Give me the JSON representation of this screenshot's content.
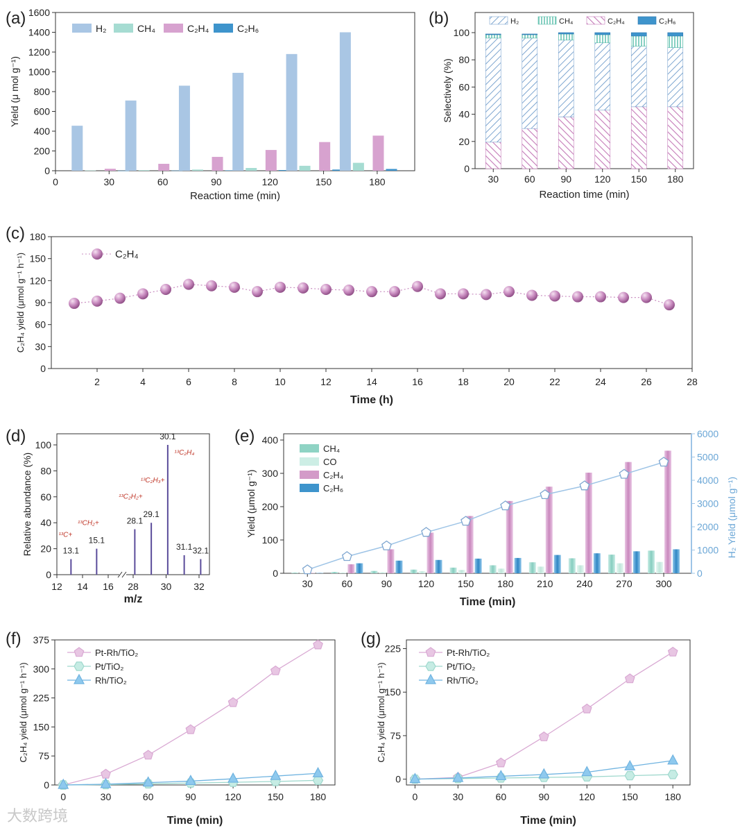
{
  "colors": {
    "h2": "#a9c6e4",
    "h2_dark": "#7ea6d0",
    "ch4": "#a6dcd2",
    "c2h4": "#d7a2cf",
    "c2h6": "#3e94cc",
    "co": "#cdeee5",
    "axis": "#222222",
    "label_red": "#c0392b",
    "spectrum": "#5a4b9a",
    "line_pt": "#a8e0d6",
    "line_rh": "#6fb3e0",
    "h2_line": "#9ec4e6",
    "c2h4_ball": "#c98cc0"
  },
  "chart_data": [
    {
      "id": "a",
      "panel_label": "(a)",
      "type": "bar",
      "xlabel": "Reaction time (min)",
      "ylabel_html": "Yield (μ mol g⁻¹)",
      "categories": [
        "30",
        "60",
        "90",
        "120",
        "150",
        "180"
      ],
      "x_ticks": [
        "0",
        "30",
        "60",
        "90",
        "120",
        "150",
        "180"
      ],
      "ylim": [
        0,
        1600
      ],
      "y_ticks": [
        "0",
        "200",
        "400",
        "600",
        "800",
        "1000",
        "1200",
        "1400",
        "1600"
      ],
      "legend": [
        "H₂",
        "CH₄",
        "C₂H₄",
        "C₂H₆"
      ],
      "series": [
        {
          "name": "H₂",
          "values": [
            455,
            710,
            860,
            990,
            1180,
            1400
          ]
        },
        {
          "name": "CH₄",
          "values": [
            3,
            6,
            12,
            28,
            50,
            80
          ]
        },
        {
          "name": "C₂H₄",
          "values": [
            20,
            70,
            140,
            210,
            290,
            355
          ]
        },
        {
          "name": "C₂H₆",
          "values": [
            1,
            2,
            4,
            7,
            12,
            18
          ]
        }
      ]
    },
    {
      "id": "b",
      "panel_label": "(b)",
      "type": "bar",
      "xlabel": "Reaction time (min)",
      "ylabel": "Selectively (%)",
      "categories": [
        "30",
        "60",
        "90",
        "120",
        "150",
        "180"
      ],
      "ylim": [
        0,
        100
      ],
      "y_ticks": [
        "0",
        "20",
        "40",
        "60",
        "80",
        "100"
      ],
      "legend": [
        "H₂",
        "CH₄",
        "C₂H₄",
        "C₂H₆"
      ],
      "series": [
        {
          "name": "C₂H₄",
          "values": [
            19.5,
            29.5,
            38,
            43,
            45.5,
            45.5
          ]
        },
        {
          "name": "H₂",
          "values": [
            76.5,
            66.5,
            56.5,
            49.5,
            44.5,
            43.5
          ]
        },
        {
          "name": "CH₄",
          "values": [
            2.5,
            2.5,
            4.5,
            6,
            7.5,
            8.5
          ]
        },
        {
          "name": "C₂H₆",
          "values": [
            0.5,
            0.5,
            1,
            1.5,
            2.5,
            2.5
          ]
        }
      ]
    },
    {
      "id": "c",
      "panel_label": "(c)",
      "type": "scatter",
      "xlabel": "Time (h)",
      "ylabel": "C₂H₄ yield (μmol g⁻¹ h⁻¹)",
      "xlim": [
        0,
        28
      ],
      "x_ticks": [
        "2",
        "4",
        "6",
        "8",
        "10",
        "12",
        "14",
        "16",
        "18",
        "20",
        "22",
        "24",
        "26",
        "28"
      ],
      "ylim": [
        0,
        180
      ],
      "y_ticks": [
        "0",
        "30",
        "60",
        "90",
        "120",
        "150",
        "180"
      ],
      "legend": [
        "C₂H₄"
      ],
      "x": [
        1,
        2,
        3,
        4,
        5,
        6,
        7,
        8,
        9,
        10,
        11,
        12,
        13,
        14,
        15,
        16,
        17,
        18,
        19,
        20,
        21,
        22,
        23,
        24,
        25,
        26,
        27
      ],
      "y": [
        89,
        92,
        96,
        102,
        108,
        115,
        113,
        111,
        105,
        111,
        110,
        108,
        107,
        105,
        105,
        112,
        102,
        102,
        101,
        105,
        100,
        99,
        98,
        98,
        97,
        97,
        87
      ]
    },
    {
      "id": "d",
      "panel_label": "(d)",
      "type": "bar",
      "xlabel": "m/z",
      "ylabel": "Relative abundance (%)",
      "x_ticks": [
        "12",
        "14",
        "16",
        "28",
        "30",
        "32"
      ],
      "ylim": [
        0,
        100
      ],
      "y_ticks": [
        "0",
        "20",
        "40",
        "60",
        "80",
        "100"
      ],
      "peaks": [
        {
          "mz": 13.1,
          "label": "13.1",
          "abundance": 12,
          "ion": "¹³C+"
        },
        {
          "mz": 15.1,
          "label": "15.1",
          "abundance": 20,
          "ion": "¹³CH₂+"
        },
        {
          "mz": 28.1,
          "label": "28.1",
          "abundance": 35,
          "ion": "¹³C₂H₂+"
        },
        {
          "mz": 29.1,
          "label": "29.1",
          "abundance": 40,
          "ion": "¹³C₂H₃+"
        },
        {
          "mz": 30.1,
          "label": "30.1",
          "abundance": 100,
          "ion": "¹³C₂H₄"
        },
        {
          "mz": 31.1,
          "label": "31.1",
          "abundance": 15,
          "ion": ""
        },
        {
          "mz": 32.1,
          "label": "32.1",
          "abundance": 12,
          "ion": ""
        }
      ]
    },
    {
      "id": "e",
      "panel_label": "(e)",
      "type": "bar",
      "xlabel": "Time (min)",
      "ylabel": "Yield (μmol g⁻¹)",
      "y2label": "H₂ Yield (μmol g⁻¹)",
      "categories": [
        "30",
        "60",
        "90",
        "120",
        "150",
        "180",
        "210",
        "240",
        "270",
        "300"
      ],
      "ylim": [
        0,
        400
      ],
      "y_ticks": [
        "0",
        "100",
        "200",
        "300",
        "400"
      ],
      "y2lim": [
        0,
        6000
      ],
      "y2_ticks": [
        "0",
        "1000",
        "2000",
        "3000",
        "4000",
        "5000",
        "6000"
      ],
      "legend": [
        "CH₄",
        "CO",
        "C₂H₄",
        "C₂H₆"
      ],
      "series": [
        {
          "name": "CH₄",
          "values": [
            2,
            4,
            7,
            11,
            17,
            24,
            33,
            45,
            56,
            68
          ]
        },
        {
          "name": "CO",
          "values": [
            1,
            2,
            3,
            6,
            10,
            14,
            20,
            24,
            30,
            34
          ]
        },
        {
          "name": "C₂H₄",
          "values": [
            1,
            27,
            72,
            122,
            172,
            217,
            260,
            302,
            334,
            368
          ]
        },
        {
          "name": "C₂H₆",
          "values": [
            1,
            30,
            38,
            40,
            44,
            46,
            55,
            60,
            66,
            72
          ]
        },
        {
          "name": "H₂",
          "axis": "right",
          "values": [
            150,
            720,
            1180,
            1760,
            2240,
            2900,
            3380,
            3760,
            4260,
            4780
          ]
        }
      ]
    },
    {
      "id": "f",
      "panel_label": "(f)",
      "type": "line",
      "xlabel": "Time (min)",
      "ylabel": "C₂H₄ yield (μmol g⁻¹ h⁻¹)",
      "x": [
        0,
        30,
        60,
        90,
        120,
        150,
        180
      ],
      "x_ticks": [
        "0",
        "30",
        "60",
        "90",
        "120",
        "150",
        "180"
      ],
      "ylim": [
        0,
        375
      ],
      "y_ticks": [
        "0",
        "75",
        "150",
        "225",
        "300",
        "375"
      ],
      "legend": [
        "Pt-Rh/TiO₂",
        "Pt/TiO₂",
        "Rh/TiO₂"
      ],
      "series": [
        {
          "name": "Pt-Rh/TiO₂",
          "values": [
            0,
            28,
            77,
            143,
            213,
            295,
            362
          ]
        },
        {
          "name": "Pt/TiO₂",
          "values": [
            0,
            1,
            3,
            5,
            7,
            9,
            12
          ]
        },
        {
          "name": "Rh/TiO₂",
          "values": [
            0,
            2,
            6,
            10,
            16,
            23,
            30
          ]
        }
      ]
    },
    {
      "id": "g",
      "panel_label": "(g)",
      "type": "line",
      "xlabel": "Time (min)",
      "ylabel": "C₂H₄ yield (μmol g⁻¹ h⁻¹)",
      "x": [
        0,
        30,
        60,
        90,
        120,
        150,
        180
      ],
      "x_ticks": [
        "0",
        "30",
        "60",
        "90",
        "120",
        "150",
        "180"
      ],
      "ylim": [
        -10,
        240
      ],
      "y_ticks": [
        "0",
        "75",
        "150",
        "225"
      ],
      "legend": [
        "Pt-Rh/TiO₂",
        "Pt/TiO₂",
        "Rh/TiO₂"
      ],
      "series": [
        {
          "name": "Pt-Rh/TiO₂",
          "values": [
            0,
            3,
            28,
            73,
            121,
            173,
            219
          ]
        },
        {
          "name": "Pt/TiO₂",
          "values": [
            0,
            1,
            2,
            3,
            4,
            6,
            8
          ]
        },
        {
          "name": "Rh/TiO₂",
          "values": [
            0,
            2,
            5,
            8,
            12,
            22,
            32
          ]
        }
      ]
    }
  ],
  "watermark": "大数跨境"
}
